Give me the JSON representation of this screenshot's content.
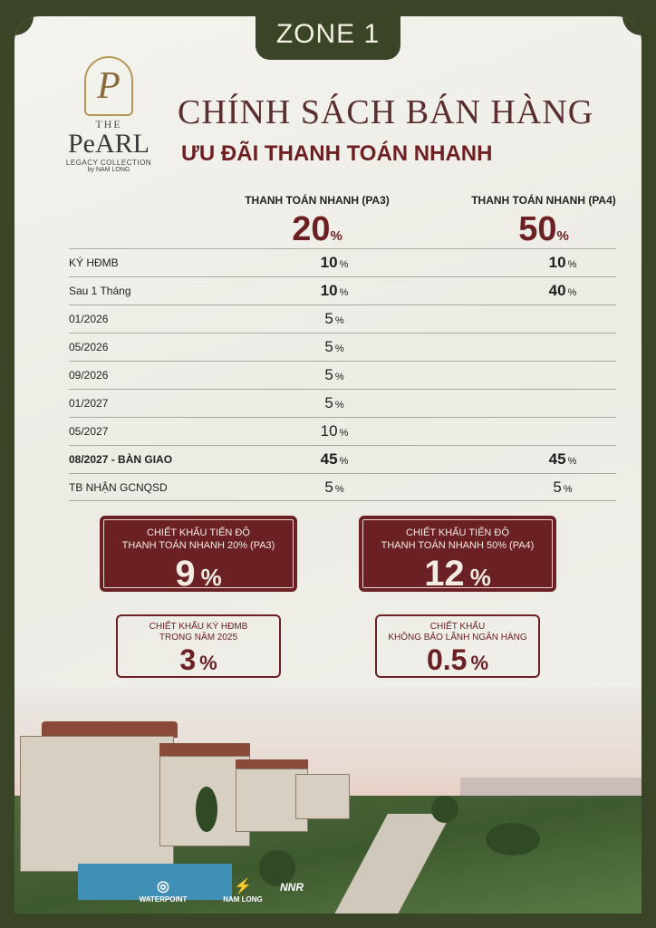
{
  "zone": "ZONE 1",
  "logo": {
    "monogram": "P",
    "the": "THE",
    "name": "PeARL",
    "line1": "LEGACY COLLECTION",
    "line2": "by NAM LONG"
  },
  "title": "CHÍNH SÁCH BÁN HÀNG",
  "subtitle": "ƯU ĐÃI THANH TOÁN NHANH",
  "columns": [
    {
      "label": "THANH TOÁN NHANH (PA3)",
      "value": "20",
      "unit": "%"
    },
    {
      "label": "THANH TOÁN NHANH (PA4)",
      "value": "50",
      "unit": "%"
    }
  ],
  "rows": [
    {
      "label": "KÝ HĐMB",
      "pa3": "10",
      "pa4": "10",
      "unit": "%"
    },
    {
      "label": "Sau 1 Tháng",
      "pa3": "10",
      "pa4": "40",
      "unit": "%"
    },
    {
      "label": "01/2026",
      "pa3": "5",
      "pa4": "",
      "unit": "%"
    },
    {
      "label": "05/2026",
      "pa3": "5",
      "pa4": "",
      "unit": "%"
    },
    {
      "label": "09/2026",
      "pa3": "5",
      "pa4": "",
      "unit": "%"
    },
    {
      "label": "01/2027",
      "pa3": "5",
      "pa4": "",
      "unit": "%"
    },
    {
      "label": "05/2027",
      "pa3": "10",
      "pa4": "",
      "unit": "%"
    },
    {
      "label": "08/2027 - BÀN GIAO",
      "pa3": "45",
      "pa4": "45",
      "unit": "%"
    },
    {
      "label": "TB NHẬN GCNQSD",
      "pa3": "5",
      "pa4": "5",
      "unit": "%"
    }
  ],
  "discounts": {
    "pa3": {
      "line1": "CHIẾT KHẤU TIẾN ĐỘ",
      "line2": "THANH TOÁN NHANH 20% (PA3)",
      "value": "9",
      "unit": "%"
    },
    "pa4": {
      "line1": "CHIẾT KHẤU TIẾN ĐỘ",
      "line2": "THANH TOÁN NHANH 50% (PA4)",
      "value": "12",
      "unit": "%"
    },
    "hdmb": {
      "line1": "CHIẾT KHẤU KÝ HĐMB",
      "line2": "TRONG NĂM 2025",
      "value": "3",
      "unit": "%"
    },
    "bank": {
      "line1": "CHIẾT KHẤU",
      "line2": "KHÔNG BẢO LÃNH NGÂN HÀNG",
      "value": "0.5",
      "unit": "%"
    }
  },
  "footer": {
    "logo1": "WATERPOINT",
    "logo2": "NAM LONG",
    "logo3": "NNR"
  }
}
